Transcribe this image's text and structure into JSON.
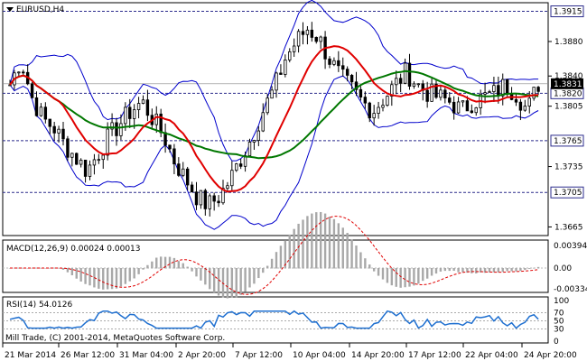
{
  "window": {
    "symbol_label": "EURUSD,H4",
    "copyright": "Mill Trade, (C) 2001-2014, MetaQuotes Software Corp."
  },
  "colors": {
    "background": "#ffffff",
    "frame": "#000000",
    "candle": "#000000",
    "bollinger": "#0000cc",
    "ma_fast": "#e00000",
    "ma_slow": "#007700",
    "macd_hist": "#a8a8a8",
    "macd_signal": "#e00000",
    "rsi": "#1e6fd0",
    "level_line": "#2b2b8c",
    "price_tag_bg": "#ffffff"
  },
  "main_panel": {
    "y_ticks": [
      "1.3880",
      "1.3840",
      "1.3805",
      "1.3735",
      "1.3665"
    ],
    "levels": [
      {
        "label": "1.3915",
        "value": 1.3915
      },
      {
        "label": "1.3820",
        "value": 1.382
      },
      {
        "label": "1.3765",
        "value": 1.3765
      },
      {
        "label": "1.3705",
        "value": 1.3705
      }
    ],
    "current_price": {
      "label": "1.3831",
      "value": 1.3831
    }
  },
  "macd_panel": {
    "label": "MACD(12,26,9) 0.00024 0.00013",
    "y_ticks": [
      "0.00394",
      "0.00",
      "-0.00334"
    ]
  },
  "rsi_panel": {
    "label": "RSI(14) 54.0126",
    "y_ticks": [
      "100",
      "70",
      "50",
      "30",
      "0"
    ],
    "levels": [
      70,
      50,
      30
    ]
  },
  "x_axis": {
    "labels": [
      "21 Mar 2014",
      "26 Mar 12:00",
      "31 Mar 04:00",
      "2 Apr 20:00",
      "7 Apr 12:00",
      "10 Apr 04:00",
      "14 Apr 20:00",
      "17 Apr 12:00",
      "22 Apr 04:00",
      "24 Apr 20:00"
    ]
  },
  "chart_data": {
    "type": "candlestick",
    "symbol": "EURUSD",
    "timeframe": "H4",
    "ylim": [
      1.3655,
      1.3925
    ],
    "close_path": [
      1.383,
      1.386,
      1.3815,
      1.379,
      1.378,
      1.376,
      1.3745,
      1.373,
      1.375,
      1.377,
      1.3785,
      1.38,
      1.381,
      1.379,
      1.377,
      1.374,
      1.372,
      1.37,
      1.369,
      1.37,
      1.372,
      1.3745,
      1.377,
      1.38,
      1.3825,
      1.386,
      1.388,
      1.3895,
      1.3885,
      1.386,
      1.384,
      1.3825,
      1.381,
      1.38,
      1.3815,
      1.383,
      1.3845,
      1.383,
      1.382,
      1.3815,
      1.381,
      1.38,
      1.381,
      1.3815,
      1.382,
      1.383,
      1.382,
      1.38,
      1.3831
    ],
    "macd": {
      "value": 0.00024,
      "signal": 0.00013
    },
    "rsi": {
      "period": 14,
      "value": 54.0126
    }
  }
}
